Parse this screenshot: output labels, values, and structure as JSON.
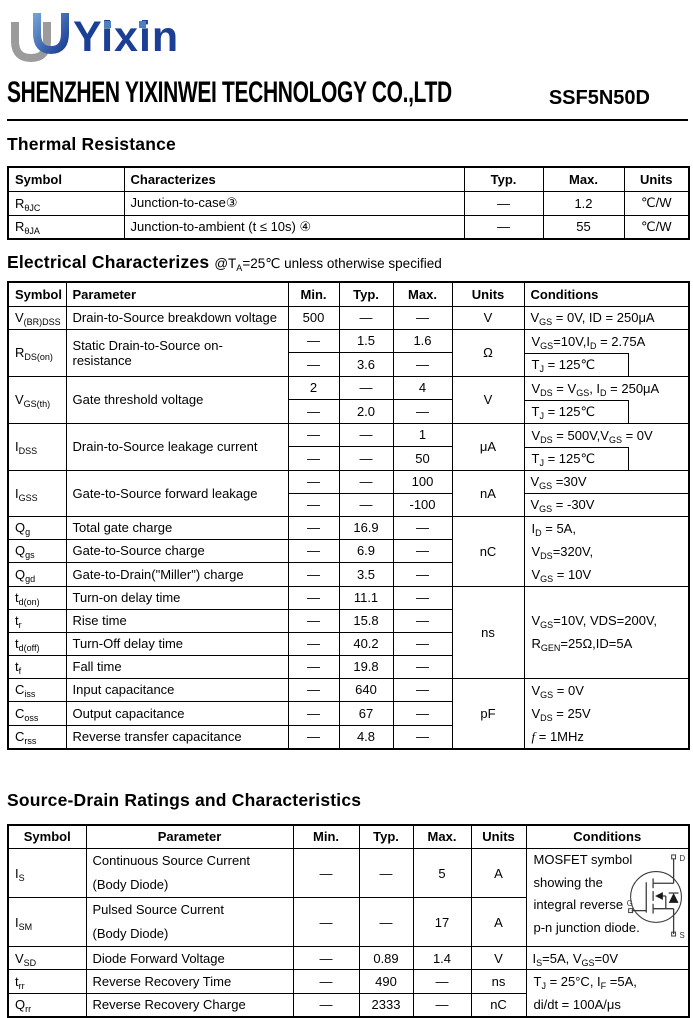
{
  "header": {
    "brand": "Yixin",
    "company": "SHENZHEN YIXINWEI TECHNOLOGY CO.,LTD",
    "part_number": "SSF5N50D",
    "brand_color": "#1b3f94",
    "logo_gray": "#9b9b9b",
    "logo_blue_light": "#6f9fd6",
    "logo_blue_dark": "#1b3f94"
  },
  "sections": {
    "thermal_title": "Thermal Resistance",
    "electrical_title": "Electrical Characterizes",
    "electrical_subtitle": "@T~A~=25℃ unless otherwise specified",
    "sourcedrain_title": "Source-Drain Ratings and Characteristics"
  },
  "thermal": {
    "columns": [
      "Symbol",
      "Characterizes",
      "Typ.",
      "Max.",
      "Units"
    ],
    "rows": [
      {
        "sym": "R~θJC~",
        "chr": "Junction-to-case③",
        "typ": "—",
        "max": "1.2",
        "units": "℃/W"
      },
      {
        "sym": "R~θJA~",
        "chr": "Junction-to-ambient (t ≤ 10s) ④",
        "typ": "—",
        "max": "55",
        "units": "℃/W"
      }
    ]
  },
  "electrical": {
    "columns": [
      "Symbol",
      "Parameter",
      "Min.",
      "Typ.",
      "Max.",
      "Units",
      "Conditions"
    ],
    "vbrdss": {
      "sym": "V~(BR)DSS~",
      "par": "Drain-to-Source breakdown voltage",
      "min": "500",
      "typ": "—",
      "max": "—",
      "units": "V",
      "cond": "V~GS~ = 0V, ID = 250μA"
    },
    "rdson": {
      "sym": "R~DS(on)~",
      "par": "Static Drain-to-Source on-resistance",
      "a_min": "—",
      "a_typ": "1.5",
      "a_max": "1.6",
      "b_min": "—",
      "b_typ": "3.6",
      "b_max": "—",
      "units": "Ω",
      "cond1": "V~GS~=10V,I~D~ = 2.75A",
      "cond2": "T~J~ = 125℃"
    },
    "vgsth": {
      "sym": "V~GS(th)~",
      "par": "Gate threshold voltage",
      "a_min": "2",
      "a_typ": "—",
      "a_max": "4",
      "b_min": "—",
      "b_typ": "2.0",
      "b_max": "—",
      "units": "V",
      "cond1": "V~DS~ = V~GS~, I~D~ = 250μA",
      "cond2": "T~J~ = 125℃"
    },
    "idss": {
      "sym": "I~DSS~",
      "par": "Drain-to-Source leakage current",
      "a_min": "—",
      "a_typ": "—",
      "a_max": "1",
      "b_min": "—",
      "b_typ": "—",
      "b_max": "50",
      "units": "μA",
      "cond1": "V~DS~ = 500V,V~GS~ = 0V",
      "cond2": "T~J~ = 125℃"
    },
    "igss": {
      "sym": "I~GSS~",
      "par": "Gate-to-Source forward leakage",
      "a_min": "—",
      "a_typ": "—",
      "a_max": "100",
      "b_min": "—",
      "b_typ": "—",
      "b_max": "-100",
      "units": "nA",
      "cond_a": "V~GS~ =30V",
      "cond_b": "V~GS~ = -30V"
    },
    "qg": {
      "sym": "Q~g~",
      "par": "Total gate charge",
      "min": "—",
      "typ": "16.9",
      "max": "—"
    },
    "qgs": {
      "sym": "Q~gs~",
      "par": "Gate-to-Source charge",
      "min": "—",
      "typ": "6.9",
      "max": "—"
    },
    "qgd": {
      "sym": "Q~gd~",
      "par": "Gate-to-Drain(\"Miller\") charge",
      "min": "—",
      "typ": "3.5",
      "max": "—"
    },
    "charge_units": "nC",
    "charge_cond": [
      "I~D~ = 5A,",
      "V~DS~=320V,",
      "V~GS~ = 10V"
    ],
    "tdon": {
      "sym": "t~d(on)~",
      "par": "Turn-on delay time",
      "min": "—",
      "typ": "11.1",
      "max": "—"
    },
    "trise": {
      "sym": "t~r~",
      "par": "Rise time",
      "min": "—",
      "typ": "15.8",
      "max": "—"
    },
    "tdoff": {
      "sym": "t~d(off)~",
      "par": "Turn-Off delay time",
      "min": "—",
      "typ": "40.2",
      "max": "—"
    },
    "tfall": {
      "sym": "t~f~",
      "par": "Fall time",
      "min": "—",
      "typ": "19.8",
      "max": "—"
    },
    "switch_units": "ns",
    "switch_cond": [
      "V~GS~=10V, VDS=200V,",
      "R~GEN~=25Ω,ID=5A"
    ],
    "ciss": {
      "sym": "C~iss~",
      "par": "Input capacitance",
      "min": "—",
      "typ": "640",
      "max": "—"
    },
    "coss": {
      "sym": "C~oss~",
      "par": "Output capacitance",
      "min": "—",
      "typ": "67",
      "max": "—"
    },
    "crss": {
      "sym": "C~rss~",
      "par": "Reverse transfer capacitance",
      "min": "—",
      "typ": "4.8",
      "max": "—"
    },
    "cap_units": "pF",
    "cap_cond": [
      "V~GS~ = 0V",
      "V~DS~ = 25V",
      "^f^ = 1MHz"
    ]
  },
  "sourcedrain": {
    "columns": [
      "Symbol",
      "Parameter",
      "Min.",
      "Typ.",
      "Max.",
      "Units",
      "Conditions"
    ],
    "is": {
      "sym": "I~S~",
      "par1": "Continuous Source Current",
      "par2": "(Body Diode)",
      "min": "—",
      "typ": "—",
      "max": "5",
      "units": "A"
    },
    "ism": {
      "sym": "I~SM~",
      "par1": "Pulsed Source Current",
      "par2": "(Body Diode)",
      "min": "—",
      "typ": "—",
      "max": "17",
      "units": "A"
    },
    "mosfet_cond": [
      "MOSFET symbol",
      "showing  the",
      "integral reverse",
      "p-n junction diode."
    ],
    "mosfet_labels": {
      "d": "D",
      "g": "G",
      "s": "S"
    },
    "vsd": {
      "sym": "V~SD~",
      "par": "Diode Forward Voltage",
      "min": "—",
      "typ": "0.89",
      "max": "1.4",
      "units": "V",
      "cond": "I~S~=5A, V~GS~=0V"
    },
    "trr": {
      "sym": "t~rr~",
      "par": "Reverse Recovery Time",
      "min": "—",
      "typ": "490",
      "max": "—",
      "units": "ns"
    },
    "qrr": {
      "sym": "Q~rr~",
      "par": "Reverse Recovery Charge",
      "min": "—",
      "typ": "2333",
      "max": "—",
      "units": "nC"
    },
    "rr_cond": [
      "T~J~ = 25°C, I~F~ =5A,",
      "di/dt = 100A/μs"
    ]
  }
}
